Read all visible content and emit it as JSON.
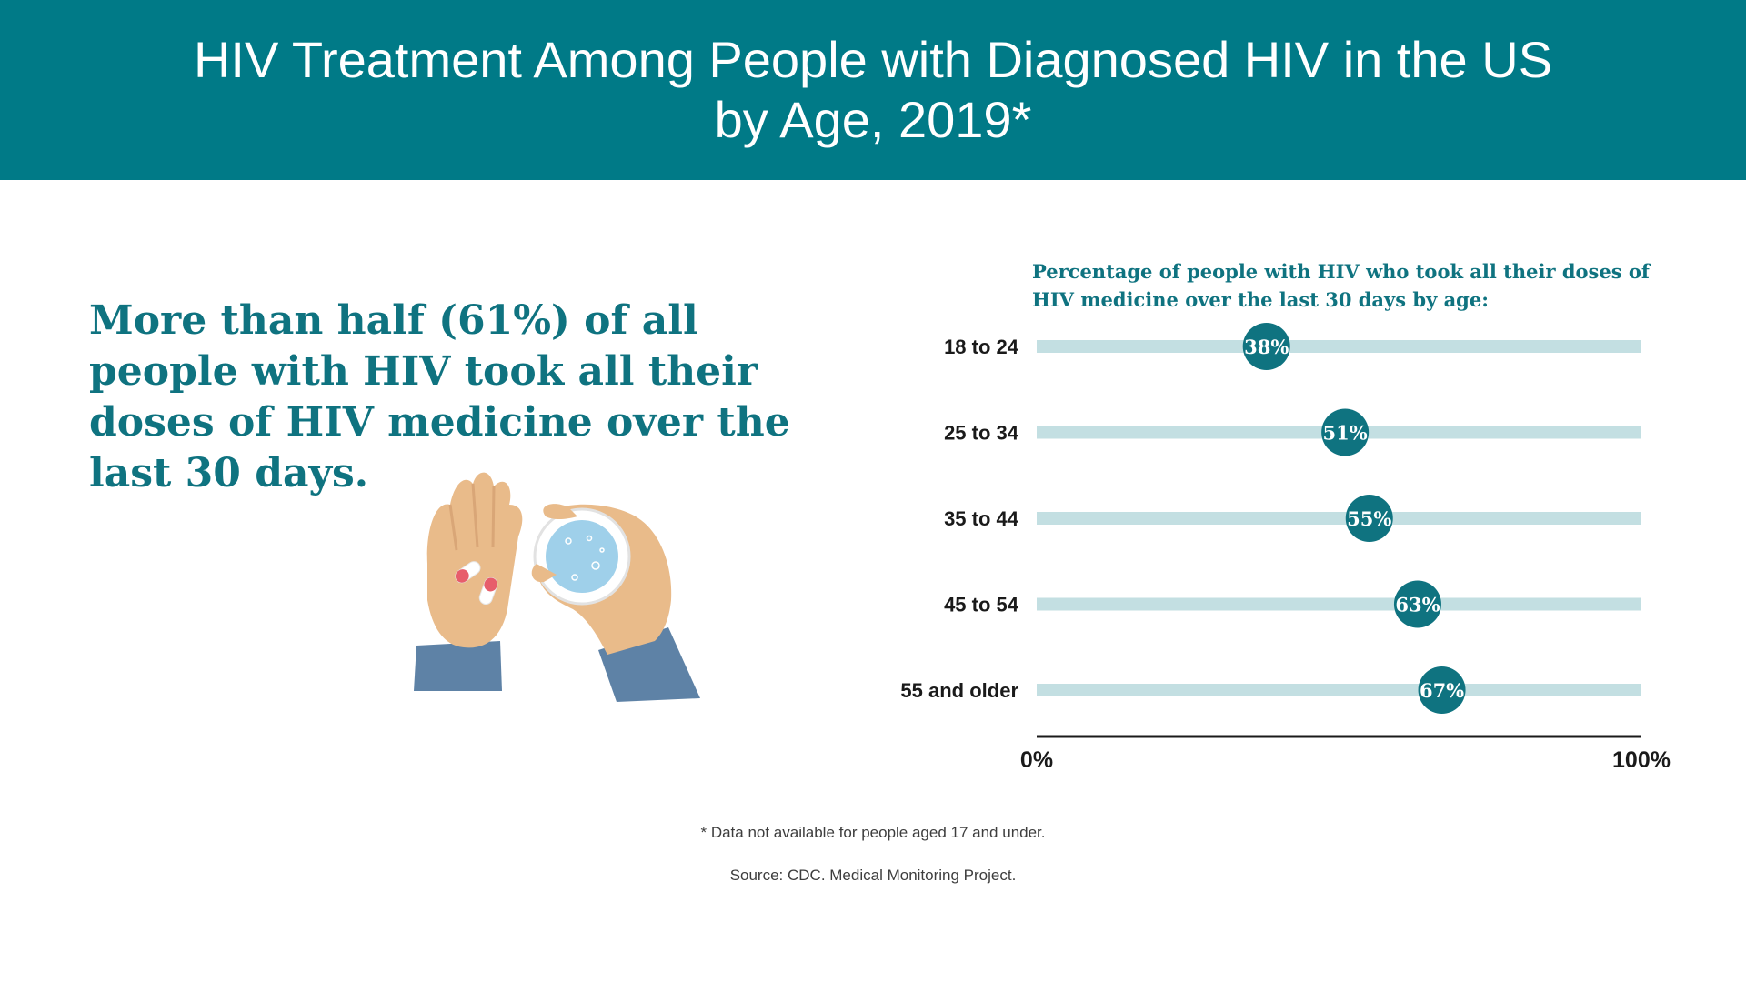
{
  "header": {
    "title": "HIV Treatment Among People with Diagnosed HIV in the US by Age, 2019*"
  },
  "headline": "More than half (61%) of all people with HIV took all their doses of HIV medicine over the last 30 days.",
  "illustration": {
    "icon": "hands-with-pills-and-water-glass-icon"
  },
  "chart_data": {
    "type": "dot",
    "subtitle": "Percentage of people with HIV who took all their doses of HIV medicine over the last 30 days by age:",
    "categories": [
      "18 to 24",
      "25 to 34",
      "35 to 44",
      "45 to 54",
      "55 and older"
    ],
    "values": [
      38,
      51,
      55,
      63,
      67
    ],
    "value_labels": [
      "38%",
      "51%",
      "55%",
      "63%",
      "67%"
    ],
    "xlim": [
      0,
      100
    ],
    "x_tick_labels": [
      "0%",
      "100%"
    ],
    "grid": false,
    "legend": "none"
  },
  "colors": {
    "banner": "#007a87",
    "accent_text": "#0f7380",
    "dot": "#0f7380",
    "track": "#c3dfe2",
    "axis": "#1a1a1a"
  },
  "footer": {
    "footnote": "* Data not available for people aged 17 and under.",
    "source": "Source: CDC. Medical Monitoring Project."
  }
}
